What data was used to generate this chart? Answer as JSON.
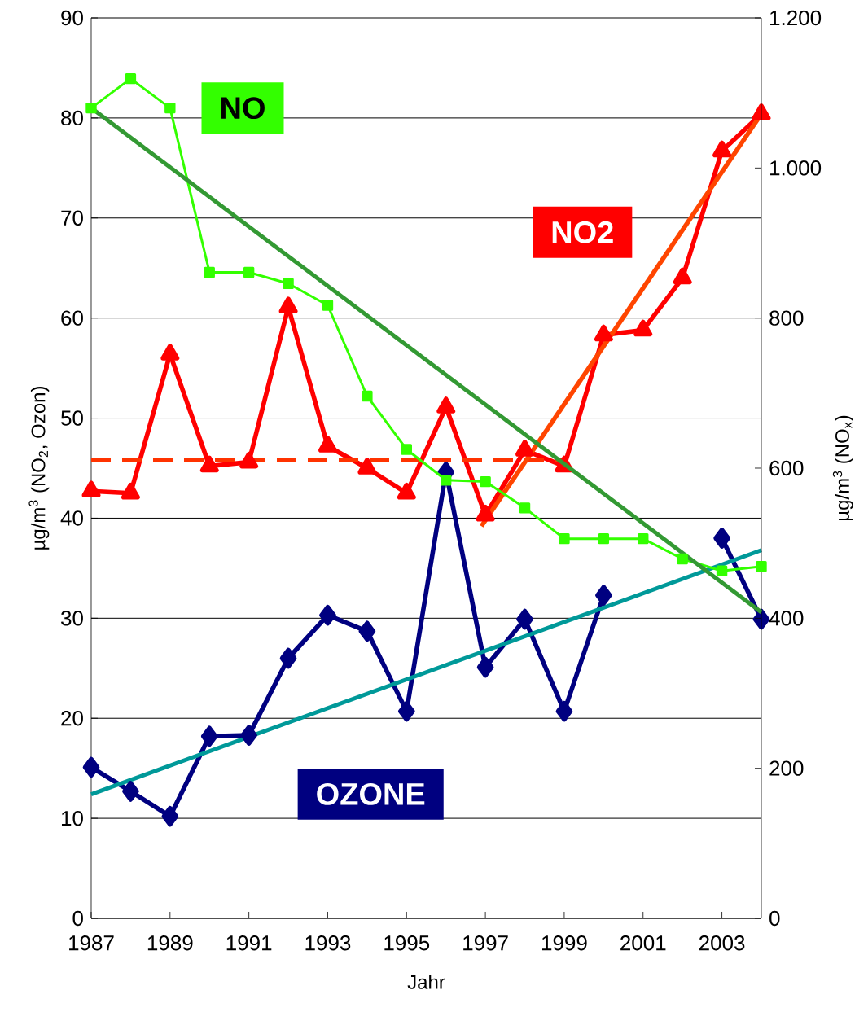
{
  "chart_data": {
    "type": "line",
    "xlabel": "Jahr",
    "ylabel": "µg/m$^{3}$ (NO$_{2}$, Ozon)",
    "y2label": "µg/m$^{3}$ (NO$_{x}$)",
    "x": [
      1987,
      1988,
      1989,
      1990,
      1991,
      1992,
      1993,
      1994,
      1995,
      1996,
      1997,
      1998,
      1999,
      2000,
      2001,
      2002,
      2003,
      2004
    ],
    "xlim": [
      1987,
      2004
    ],
    "xticks": [
      1987,
      1989,
      1991,
      1993,
      1995,
      1997,
      1999,
      2001,
      2003
    ],
    "ylim": [
      0,
      90
    ],
    "yticks": [
      0,
      10,
      20,
      30,
      40,
      50,
      60,
      70,
      80,
      90
    ],
    "y2lim": [
      0,
      1200
    ],
    "y2ticks": [
      0,
      {
        "value": 200,
        "label": "200"
      },
      {
        "value": 400,
        "label": "400"
      },
      {
        "value": 600,
        "label": "600"
      },
      {
        "value": 800,
        "label": "800"
      },
      {
        "value": 1000,
        "label": "1.000"
      },
      {
        "value": 1200,
        "label": "1.200"
      }
    ],
    "grid": "y",
    "series": [
      {
        "name": "NO",
        "color": "#33ff00",
        "axis": "y2",
        "marker": "square",
        "values": [
          1080,
          1119,
          1080,
          861,
          861,
          846,
          817,
          696,
          625,
          584,
          582,
          547,
          506,
          506,
          506,
          479,
          463,
          469
        ]
      },
      {
        "type": "line",
        "color": "#339933",
        "axis": "y2",
        "marker": "none",
        "x": [
          1987,
          2004
        ],
        "values": [
          1080,
          408
        ]
      },
      {
        "name": "NO2",
        "color": "#ff0000",
        "marker": "triangle",
        "values": [
          42.7,
          42.5,
          56.4,
          45.2,
          45.6,
          61.1,
          47.2,
          45,
          42.5,
          51.1,
          40.3,
          46.8,
          45.2,
          58.3,
          58.8,
          64,
          76.7,
          80.4
        ]
      },
      {
        "type": "line",
        "color": "#ff3300",
        "marker": "none",
        "line_style": "dashed",
        "x": [
          1987,
          1999
        ],
        "values": [
          45.8,
          45.8
        ]
      },
      {
        "type": "line",
        "color": "#ff4500",
        "marker": "none",
        "x": [
          1996.9,
          2004
        ],
        "values": [
          39.2,
          80.4
        ]
      },
      {
        "name": "OZONE",
        "color": "#000080",
        "marker": "diamond",
        "values": [
          15.1,
          12.7,
          10.2,
          18.2,
          18.3,
          26,
          30.3,
          28.7,
          20.7,
          44.6,
          25.1,
          29.9,
          20.7,
          32.3,
          null,
          null,
          38,
          29.9
        ]
      },
      {
        "type": "line",
        "color": "#009999",
        "marker": "none",
        "x": [
          1987,
          2004
        ],
        "values": [
          12.4,
          36.8
        ]
      }
    ]
  }
}
